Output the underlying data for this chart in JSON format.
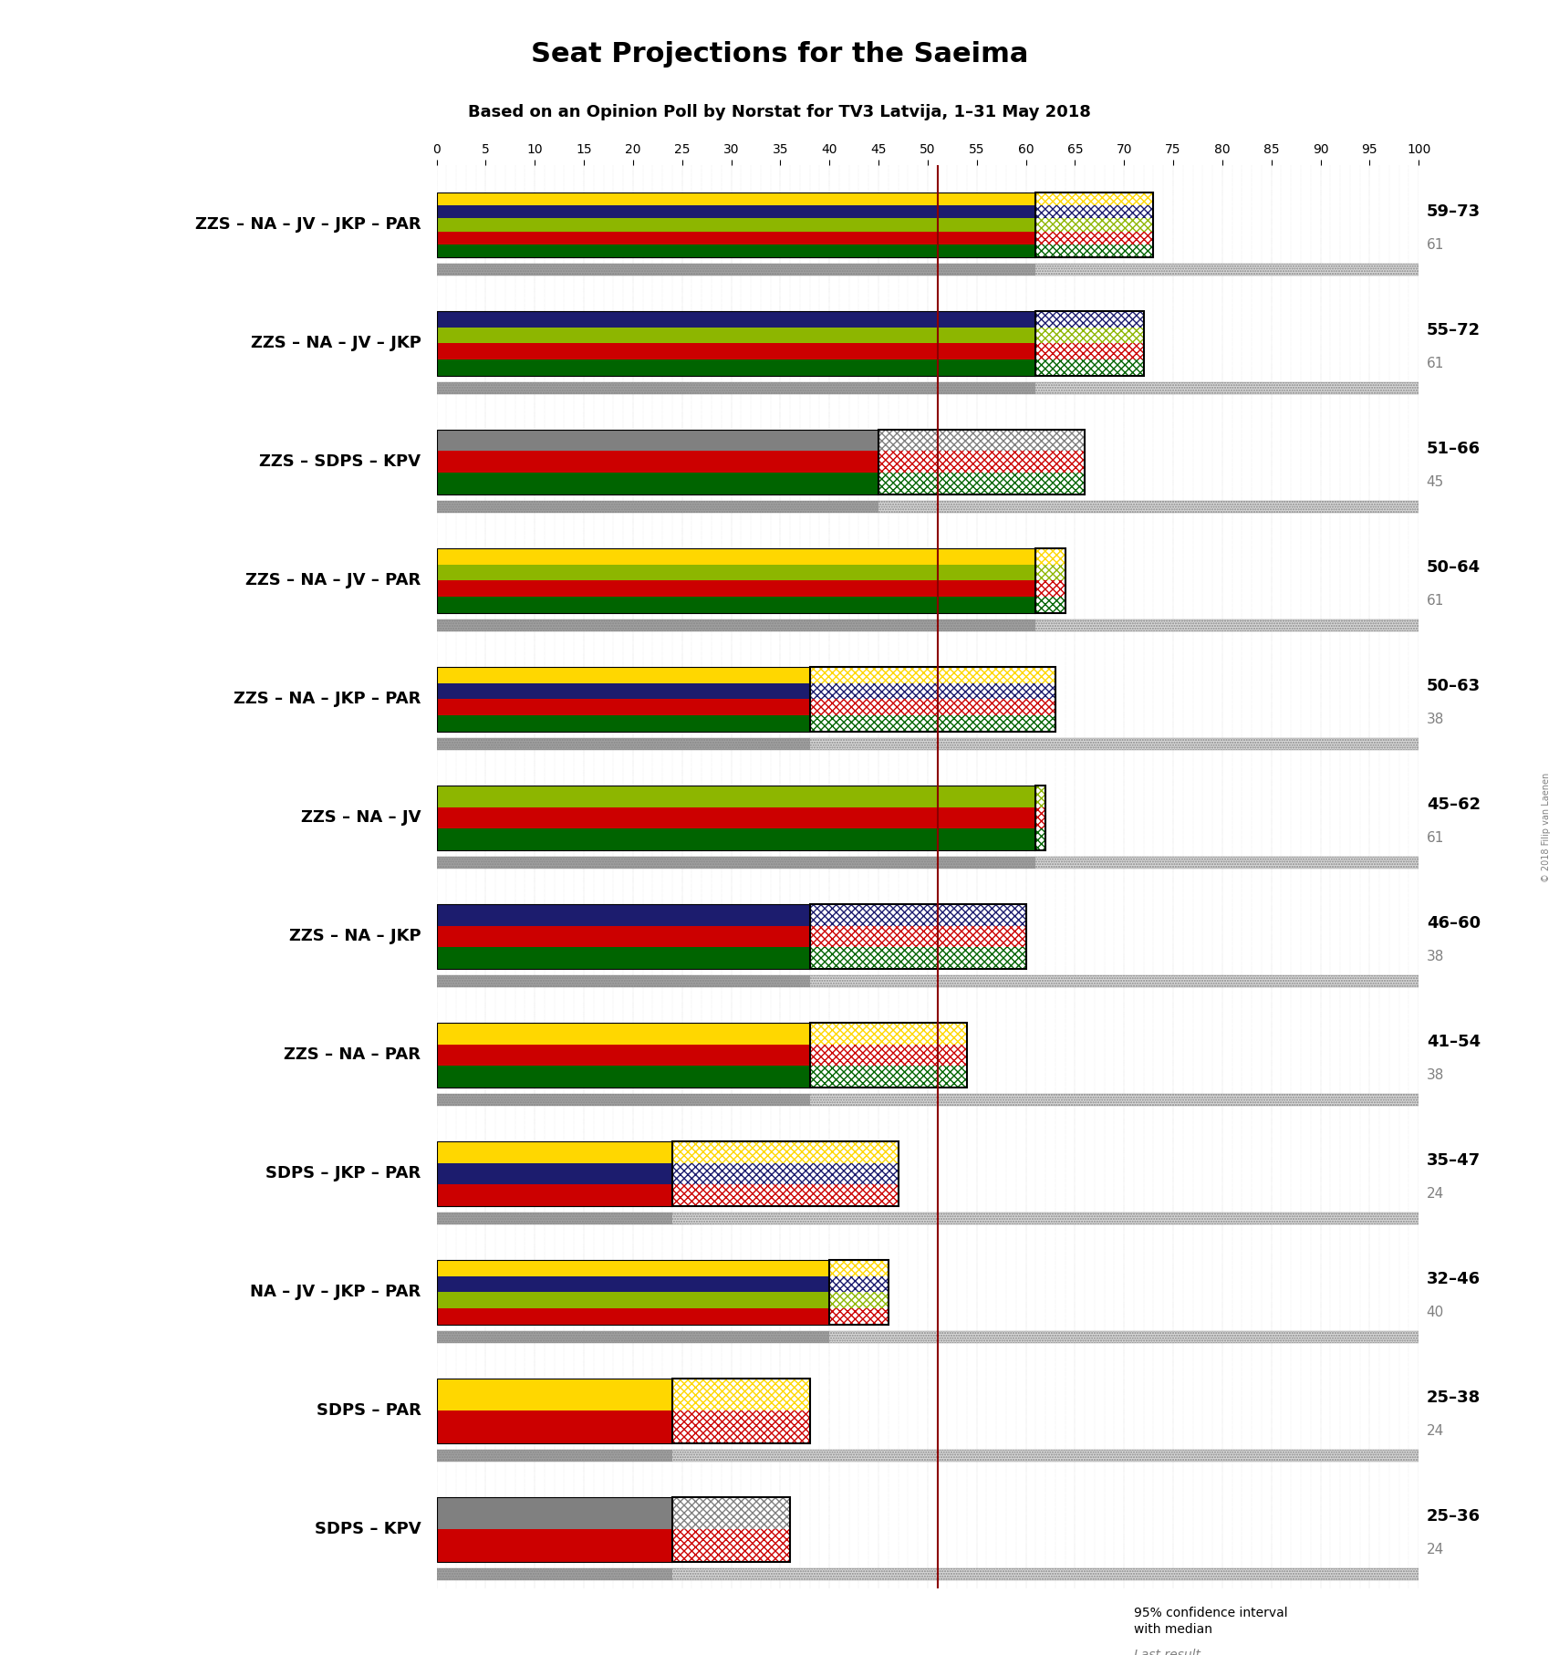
{
  "title": "Seat Projections for the Saeima",
  "subtitle": "Based on an Opinion Poll by Norstat for TV3 Latvija, 1–31 May 2018",
  "copyright": "© 2018 Filip van Laenen",
  "majority_line": 51,
  "axis_max": 100,
  "background_color": "#ffffff",
  "coalitions": [
    {
      "name": "ZZS – NA – JV – JKP – PAR",
      "low": 59,
      "high": 73,
      "median": 61,
      "last_result": 61,
      "parties": [
        "ZZS",
        "NA",
        "JV",
        "JKP",
        "PAR"
      ],
      "colors": [
        "#006400",
        "#CC0000",
        "#8DB600",
        "#1C1C6E",
        "#FFD700"
      ],
      "ci_colors": [
        "#006400",
        "#CC0000",
        "#8DB600",
        "#1C1C6E",
        "#FFD700"
      ]
    },
    {
      "name": "ZZS – NA – JV – JKP",
      "low": 55,
      "high": 72,
      "median": 61,
      "last_result": 61,
      "parties": [
        "ZZS",
        "NA",
        "JV",
        "JKP"
      ],
      "colors": [
        "#006400",
        "#CC0000",
        "#8DB600",
        "#1C1C6E"
      ],
      "ci_colors": [
        "#006400",
        "#CC0000",
        "#8DB600",
        "#1C1C6E"
      ]
    },
    {
      "name": "ZZS – SDPS – KPV",
      "low": 51,
      "high": 66,
      "median": 45,
      "last_result": 45,
      "parties": [
        "ZZS",
        "SDPS",
        "KPV"
      ],
      "colors": [
        "#006400",
        "#CC0000",
        "#808080"
      ],
      "ci_colors": [
        "#006400",
        "#CC0000",
        "#808080"
      ]
    },
    {
      "name": "ZZS – NA – JV – PAR",
      "low": 50,
      "high": 64,
      "median": 61,
      "last_result": 61,
      "parties": [
        "ZZS",
        "NA",
        "JV",
        "PAR"
      ],
      "colors": [
        "#006400",
        "#CC0000",
        "#8DB600",
        "#FFD700"
      ],
      "ci_colors": [
        "#006400",
        "#CC0000",
        "#8DB600",
        "#FFD700"
      ]
    },
    {
      "name": "ZZS – NA – JKP – PAR",
      "low": 50,
      "high": 63,
      "median": 38,
      "last_result": 38,
      "parties": [
        "ZZS",
        "NA",
        "JKP",
        "PAR"
      ],
      "colors": [
        "#006400",
        "#CC0000",
        "#1C1C6E",
        "#FFD700"
      ],
      "ci_colors": [
        "#006400",
        "#CC0000",
        "#1C1C6E",
        "#FFD700"
      ]
    },
    {
      "name": "ZZS – NA – JV",
      "low": 45,
      "high": 62,
      "median": 61,
      "last_result": 61,
      "parties": [
        "ZZS",
        "NA",
        "JV"
      ],
      "colors": [
        "#006400",
        "#CC0000",
        "#8DB600"
      ],
      "ci_colors": [
        "#006400",
        "#CC0000",
        "#8DB600"
      ]
    },
    {
      "name": "ZZS – NA – JKP",
      "low": 46,
      "high": 60,
      "median": 38,
      "last_result": 38,
      "parties": [
        "ZZS",
        "NA",
        "JKP"
      ],
      "colors": [
        "#006400",
        "#CC0000",
        "#1C1C6E"
      ],
      "ci_colors": [
        "#006400",
        "#CC0000",
        "#1C1C6E"
      ]
    },
    {
      "name": "ZZS – NA – PAR",
      "low": 41,
      "high": 54,
      "median": 38,
      "last_result": 38,
      "parties": [
        "ZZS",
        "NA",
        "PAR"
      ],
      "colors": [
        "#006400",
        "#CC0000",
        "#FFD700"
      ],
      "ci_colors": [
        "#006400",
        "#CC0000",
        "#FFD700"
      ]
    },
    {
      "name": "SDPS – JKP – PAR",
      "low": 35,
      "high": 47,
      "median": 24,
      "last_result": 24,
      "parties": [
        "SDPS",
        "JKP",
        "PAR"
      ],
      "colors": [
        "#CC0000",
        "#1C1C6E",
        "#FFD700"
      ],
      "ci_colors": [
        "#CC0000",
        "#1C1C6E",
        "#FFD700"
      ]
    },
    {
      "name": "NA – JV – JKP – PAR",
      "low": 32,
      "high": 46,
      "median": 40,
      "last_result": 40,
      "parties": [
        "NA",
        "JV",
        "JKP",
        "PAR"
      ],
      "colors": [
        "#CC0000",
        "#8DB600",
        "#1C1C6E",
        "#FFD700"
      ],
      "ci_colors": [
        "#CC0000",
        "#8DB600",
        "#1C1C6E",
        "#FFD700"
      ]
    },
    {
      "name": "SDPS – PAR",
      "low": 25,
      "high": 38,
      "median": 24,
      "last_result": 24,
      "parties": [
        "SDPS",
        "PAR"
      ],
      "colors": [
        "#CC0000",
        "#FFD700"
      ],
      "ci_colors": [
        "#CC0000",
        "#FFD700"
      ]
    },
    {
      "name": "SDPS – KPV",
      "low": 25,
      "high": 36,
      "median": 24,
      "last_result": 24,
      "parties": [
        "SDPS",
        "KPV"
      ],
      "colors": [
        "#CC0000",
        "#808080"
      ],
      "ci_colors": [
        "#CC0000",
        "#808080"
      ]
    }
  ]
}
